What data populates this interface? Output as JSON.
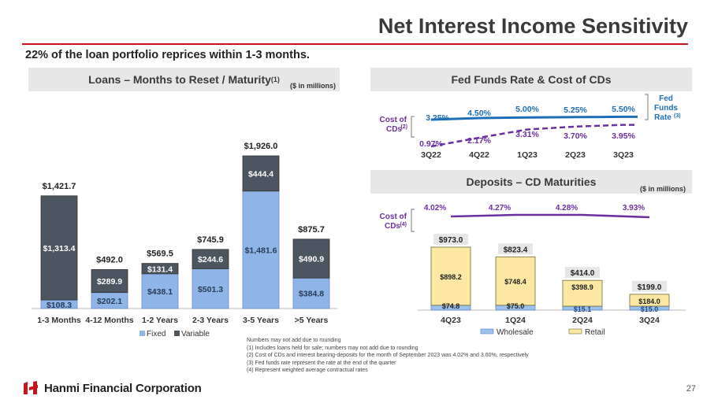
{
  "header": {
    "title": "Net Interest Income Sensitivity",
    "subtitle": "22% of the loan portfolio reprices within 1-3 months."
  },
  "colors": {
    "accent": "#c4161c",
    "fixed": "#8eb4e8",
    "variable": "#4b5660",
    "fed_line": "#1f6fb7",
    "cd_line": "#6b2fa0",
    "retail": "#fce8a3",
    "wholesale": "#9cc2ec"
  },
  "loans_panel": {
    "title": "Loans – Months to Reset / Maturity",
    "title_sup": "(1)",
    "unit": "($ in millions)"
  },
  "fed_panel": {
    "title": "Fed Funds Rate & Cost of CDs"
  },
  "deposits_panel": {
    "title": "Deposits – CD Maturities",
    "unit": "($ in millions)"
  },
  "chart_data": [
    {
      "type": "bar",
      "stacked": true,
      "title": "Loans – Months to Reset / Maturity",
      "categories": [
        "1-3 Months",
        "4-12 Months",
        "1-2 Years",
        "2-3 Years",
        "3-5 Years",
        ">5 Years"
      ],
      "series": [
        {
          "name": "Fixed",
          "values": [
            108.3,
            202.1,
            438.1,
            501.3,
            1481.6,
            384.8
          ],
          "labels": [
            "$108.3",
            "$202.1",
            "$438.1",
            "$501.3",
            "$1,481.6",
            "$384.8"
          ]
        },
        {
          "name": "Variable",
          "values": [
            1313.4,
            289.9,
            131.4,
            244.6,
            444.4,
            490.9
          ],
          "labels": [
            "$1,313.4",
            "$289.9",
            "$131.4",
            "$244.6",
            "$444.4",
            "$490.9"
          ]
        }
      ],
      "totals": [
        1421.7,
        492.0,
        569.5,
        745.9,
        1926.0,
        875.7
      ],
      "total_labels": [
        "$1,421.7",
        "$492.0",
        "$569.5",
        "$745.9",
        "$1,926.0",
        "$875.7"
      ],
      "legend": [
        "Fixed",
        "Variable"
      ],
      "ylim": [
        0,
        1926
      ]
    },
    {
      "type": "line",
      "title": "Fed Funds Rate & Cost of CDs",
      "categories": [
        "3Q22",
        "4Q22",
        "1Q23",
        "2Q23",
        "3Q23"
      ],
      "series": [
        {
          "name": "Fed Funds Rate",
          "label_main": "Fed Funds",
          "label_rate": "Rate",
          "sup": "(3)",
          "values": [
            3.25,
            4.5,
            5.0,
            5.25,
            5.5
          ],
          "labels": [
            "3.25%",
            "4.50%",
            "5.00%",
            "5.25%",
            "5.50%"
          ]
        },
        {
          "name": "Cost of CDs",
          "label_line1": "Cost of",
          "label_line2": "CDs",
          "sup": "(2)",
          "values": [
            0.97,
            2.17,
            3.31,
            3.7,
            3.95
          ],
          "labels": [
            "0.97%",
            "2.17%",
            "3.31%",
            "3.70%",
            "3.95%"
          ]
        }
      ],
      "ylim": [
        0,
        6
      ]
    },
    {
      "type": "bar",
      "stacked": true,
      "title": "Deposits – CD Maturities",
      "categories": [
        "4Q23",
        "1Q24",
        "2Q24",
        "3Q24"
      ],
      "series": [
        {
          "name": "Wholesale",
          "values": [
            74.8,
            75.0,
            15.1,
            15.0
          ],
          "labels": [
            "$74.8",
            "$75.0",
            "$15.1",
            "$15.0"
          ]
        },
        {
          "name": "Retail",
          "values": [
            898.2,
            748.4,
            398.9,
            184.0
          ],
          "labels": [
            "$898.2",
            "$748.4",
            "$398.9",
            "$184.0"
          ]
        }
      ],
      "totals": [
        973.0,
        823.4,
        414.0,
        199.0
      ],
      "total_labels": [
        "$973.0",
        "$823.4",
        "$414.0",
        "$199.0"
      ],
      "cost_of_cds": {
        "line1": "Cost of",
        "line2": "CDs",
        "sup": "(4)",
        "values": [
          4.02,
          4.27,
          4.28,
          3.93
        ],
        "labels": [
          "4.02%",
          "4.27%",
          "4.28%",
          "3.93%"
        ]
      },
      "legend": [
        "Wholesale",
        "Retail"
      ],
      "ylim": [
        0,
        973
      ]
    }
  ],
  "footnotes": [
    "Numbers may not add due to rounding",
    "(1)    Includes loans held for sale; numbers may not add due to rounding",
    "(2)    Cost of CDs and interest bearing-deposits for the month of September 2023 was 4.02% and 3.60%, respectively",
    "(3)    Fed funds rate represent the rate at the end of the quarter",
    "(4)    Represent weighted average contractual rates"
  ],
  "footer": {
    "company": "Hanmi Financial Corporation",
    "page_number": "27"
  }
}
